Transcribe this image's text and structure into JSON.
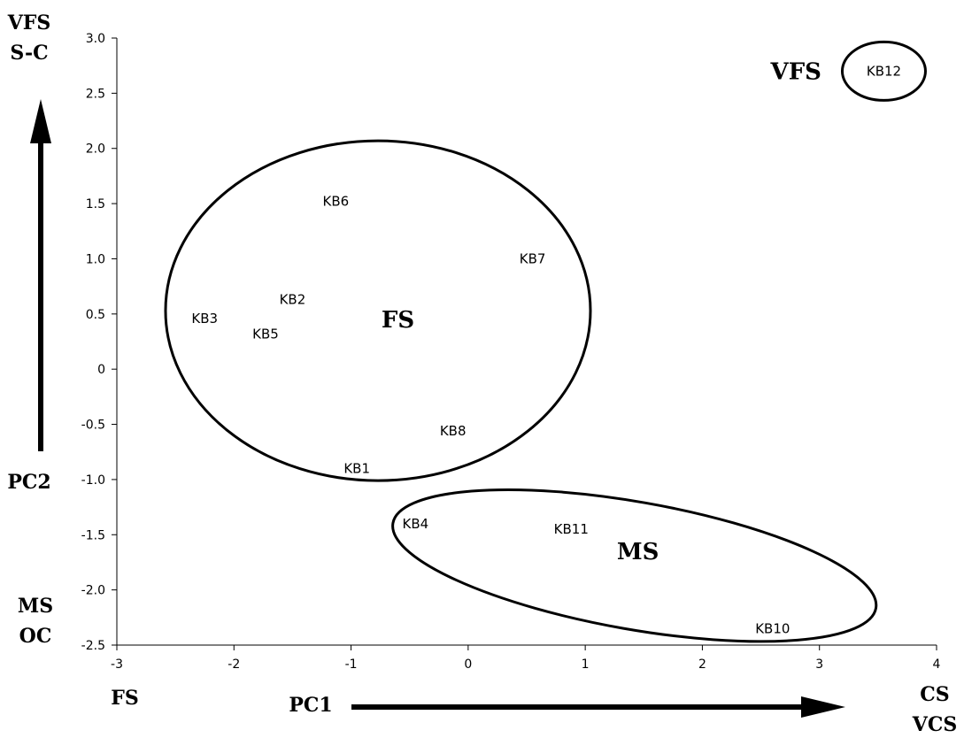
{
  "chart_data": {
    "type": "scatter",
    "title": "",
    "xlabel": "PC1",
    "ylabel": "PC2",
    "xlim": [
      -3,
      4
    ],
    "ylim": [
      -2.5,
      3.0
    ],
    "x_ticks": [
      -3,
      -2,
      -1,
      0,
      1,
      2,
      3,
      4
    ],
    "y_ticks": [
      -2.5,
      -2.0,
      -1.5,
      -1.0,
      -0.5,
      0,
      0.5,
      1.0,
      1.5,
      2.0,
      2.5,
      3.0
    ],
    "y_tick_labels": [
      "-2.5",
      "-2.0",
      "-1.5",
      "-1.0",
      "-0.5",
      "0",
      "0.5",
      "1.0",
      "1.5",
      "2.0",
      "2.5",
      "3.0"
    ],
    "grid": false,
    "points": [
      {
        "label": "KB1",
        "x": -0.95,
        "y": -0.9
      },
      {
        "label": "KB2",
        "x": -1.5,
        "y": 0.63
      },
      {
        "label": "KB3",
        "x": -2.25,
        "y": 0.46
      },
      {
        "label": "KB4",
        "x": -0.45,
        "y": -1.4
      },
      {
        "label": "KB5",
        "x": -1.73,
        "y": 0.32
      },
      {
        "label": "KB6",
        "x": -1.13,
        "y": 1.52
      },
      {
        "label": "KB7",
        "x": 0.55,
        "y": 1.0
      },
      {
        "label": "KB8",
        "x": -0.13,
        "y": -0.56
      },
      {
        "label": "KB10",
        "x": 2.6,
        "y": -2.35
      },
      {
        "label": "KB11",
        "x": 0.88,
        "y": -1.45
      },
      {
        "label": "KB12",
        "x": 3.55,
        "y": 2.7
      }
    ],
    "clusters": [
      {
        "label": "FS",
        "center_x": -0.77,
        "center_y": 0.53,
        "label_x": -0.6,
        "label_y": 0.45
      },
      {
        "label": "MS",
        "center_x": 1.42,
        "center_y": -1.78,
        "label_x": 1.45,
        "label_y": -1.65
      },
      {
        "label": "VFS",
        "center_x": 3.55,
        "center_y": 2.7,
        "label_x": 2.8,
        "label_y": 2.7
      }
    ],
    "annotations": {
      "y_top": [
        "VFS",
        "S-C"
      ],
      "y_axis_name": "PC2",
      "y_bottom": [
        "MS",
        "OC"
      ],
      "x_left": "FS",
      "x_axis_name": "PC1",
      "x_right": [
        "CS",
        "VCS"
      ]
    }
  }
}
